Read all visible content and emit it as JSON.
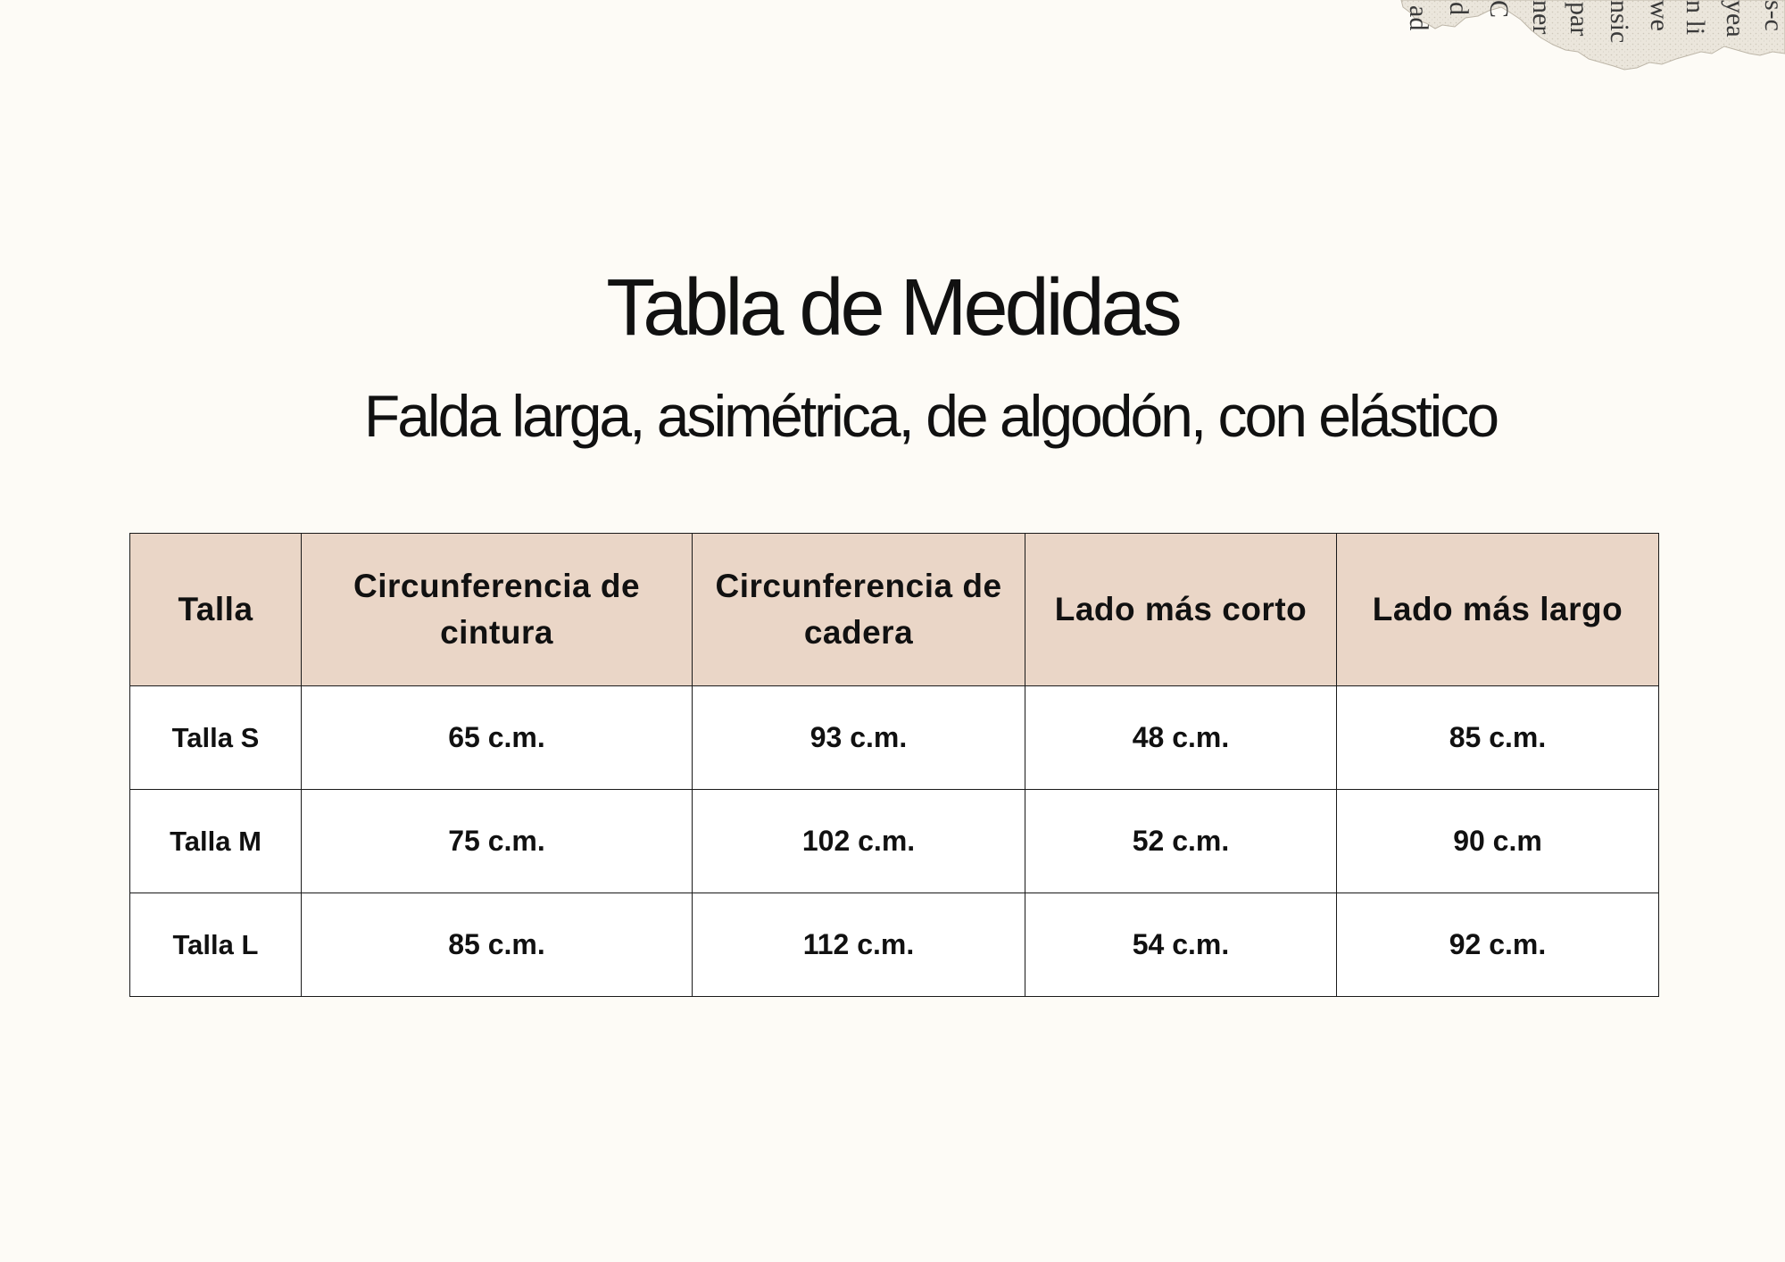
{
  "title": "Tabla de Medidas",
  "subtitle": "Falda larga, asimétrica, de algodón, con elástico",
  "decoration": {
    "torn_paper_fragment_text": [
      "ad",
      "d",
      "C",
      "ner",
      "par",
      "nsic",
      "we",
      "n li",
      "yea",
      "s-c"
    ]
  },
  "colors": {
    "background": "#fdfbf6",
    "header_fill": "#ead6c7",
    "border": "#1a1a1a"
  },
  "table": {
    "headers": [
      "Talla",
      "Circunferencia de cintura",
      "Circunferencia de cadera",
      "Lado más corto",
      "Lado más largo"
    ],
    "rows": [
      [
        "Talla S",
        "65 c.m.",
        "93 c.m.",
        "48 c.m.",
        "85 c.m."
      ],
      [
        "Talla M",
        "75 c.m.",
        "102 c.m.",
        "52 c.m.",
        "90 c.m"
      ],
      [
        "Talla L",
        "85 c.m.",
        "112 c.m.",
        "54 c.m.",
        "92 c.m."
      ]
    ]
  }
}
